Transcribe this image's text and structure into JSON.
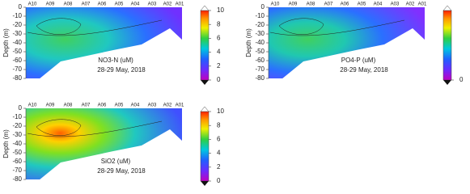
{
  "chart_data": [
    {
      "type": "contour",
      "title": "NO3-N (uM)",
      "subtitle": "28-29 May, 2018",
      "ylabel": "Depth (m)",
      "categories": [
        "A10",
        "A09",
        "A08",
        "A07",
        "A06",
        "A05",
        "A04",
        "A03",
        "A02",
        "A01"
      ],
      "ylim": [
        -80,
        0
      ],
      "yticks": [
        0,
        -10,
        -20,
        -30,
        -40,
        -50,
        -60,
        -70,
        -80
      ],
      "clim": [
        0,
        10
      ],
      "cticks": [
        0,
        2,
        4,
        6,
        8,
        10
      ]
    },
    {
      "type": "contour",
      "title": "PO4-P (uM)",
      "subtitle": "28-29 May, 2018",
      "ylabel": "Depth (m)",
      "categories": [
        "A10",
        "A09",
        "A08",
        "A07",
        "A06",
        "A05",
        "A04",
        "A03",
        "A02",
        "A01"
      ],
      "ylim": [
        -80,
        0
      ],
      "yticks": [
        0,
        -10,
        -20,
        -30,
        -40,
        -50,
        -60,
        -70,
        -80
      ],
      "cticks": [
        0
      ]
    },
    {
      "type": "contour",
      "title": "SiO2 (uM)",
      "subtitle": "28-29 May, 2018",
      "ylabel": "Depth (m)",
      "categories": [
        "A10",
        "A09",
        "A08",
        "A07",
        "A06",
        "A05",
        "A04",
        "A03",
        "A02",
        "A01"
      ],
      "ylim": [
        -80,
        0
      ],
      "yticks": [
        0,
        -10,
        -20,
        -30,
        -40,
        -50,
        -60,
        -70,
        -80
      ],
      "clim": [
        0,
        10
      ],
      "cticks": [
        0,
        2,
        4,
        6,
        8,
        10
      ]
    }
  ]
}
